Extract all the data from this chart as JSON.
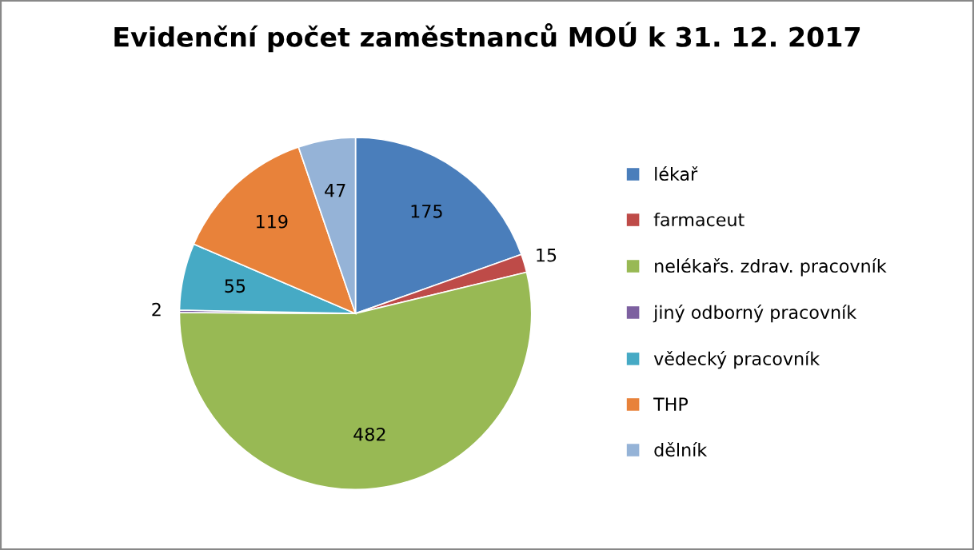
{
  "chart_data": {
    "type": "pie",
    "title": "Evidenční počet zaměstnanců MOÚ k 31. 12. 2017",
    "categories": [
      "lékař",
      "farmaceut",
      "nelékařs. zdrav. pracovník",
      "jiný odborný pracovník",
      "vědecký pracovník",
      "THP",
      "dělník"
    ],
    "values": [
      175,
      15,
      482,
      2,
      55,
      119,
      47
    ],
    "colors": [
      "#4a7ebb",
      "#be4b48",
      "#98b954",
      "#7d60a0",
      "#46aac5",
      "#e8823a",
      "#95b3d7"
    ],
    "data_labels": true,
    "legend": "right"
  }
}
